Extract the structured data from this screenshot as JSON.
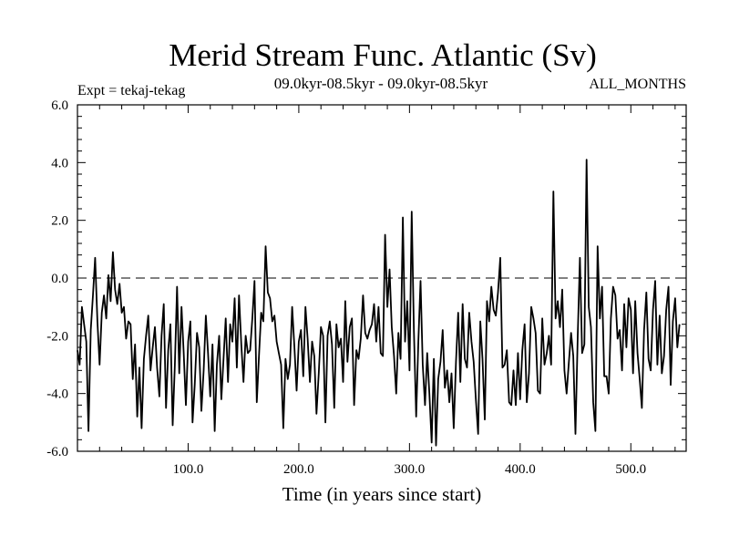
{
  "chart_data": {
    "type": "line",
    "title": "Merid Stream Func. Atlantic (Sv)",
    "subtitle": "09.0kyr-08.5kyr - 09.0kyr-08.5kyr",
    "left_note": "Expt = tekaj-tekag",
    "right_note": "ALL_MONTHS",
    "xlabel": "Time (in years since start)",
    "ylabel": "",
    "xlim": [
      0,
      550
    ],
    "ylim": [
      -6,
      6
    ],
    "x_ticks": [
      100,
      200,
      300,
      400,
      500
    ],
    "x_tick_labels": [
      "100.0",
      "200.0",
      "300.0",
      "400.0",
      "500.0"
    ],
    "y_ticks": [
      -6,
      -4,
      -2,
      0,
      2,
      4,
      6
    ],
    "y_tick_labels": [
      "-6.0",
      "-4.0",
      "-2.0",
      "0.0",
      "2.0",
      "4.0",
      "6.0"
    ],
    "reference_line": 0,
    "series": [
      {
        "name": "Merid Stream Func. Atlantic",
        "x_start": 0,
        "x_step": 2,
        "values": [
          -2.5,
          -3.0,
          -1.0,
          -1.6,
          -2.2,
          -5.3,
          -1.8,
          -0.6,
          0.7,
          -1.5,
          -3.0,
          -1.2,
          -0.6,
          -1.4,
          0.1,
          -0.8,
          0.9,
          -0.4,
          -0.9,
          -0.2,
          -1.2,
          -1.0,
          -2.1,
          -1.5,
          -1.6,
          -3.5,
          -2.3,
          -4.8,
          -3.1,
          -5.2,
          -2.8,
          -2.0,
          -1.3,
          -3.2,
          -2.4,
          -1.7,
          -3.1,
          -4.1,
          -2.0,
          -0.9,
          -4.5,
          -2.5,
          -1.6,
          -5.1,
          -3.0,
          -0.3,
          -3.3,
          -1.0,
          -2.6,
          -4.4,
          -2.2,
          -1.5,
          -5.0,
          -3.7,
          -1.9,
          -2.4,
          -4.6,
          -3.2,
          -1.3,
          -2.6,
          -4.1,
          -2.3,
          -5.3,
          -3.0,
          -2.0,
          -4.2,
          -2.8,
          -1.4,
          -3.6,
          -1.6,
          -2.2,
          -0.7,
          -3.1,
          -0.6,
          -2.3,
          -3.6,
          -2.0,
          -2.6,
          -2.5,
          -1.4,
          -0.1,
          -4.3,
          -2.7,
          -1.2,
          -1.5,
          1.1,
          -0.5,
          -0.7,
          -1.5,
          -1.3,
          -2.2,
          -2.6,
          -3.0,
          -5.2,
          -2.8,
          -3.5,
          -3.0,
          -1.0,
          -2.4,
          -3.9,
          -2.2,
          -1.8,
          -3.4,
          -1.0,
          -2.1,
          -3.6,
          -2.2,
          -2.7,
          -4.7,
          -3.3,
          -1.7,
          -2.0,
          -5.0,
          -2.0,
          -1.5,
          -2.3,
          -4.5,
          -1.6,
          -2.4,
          -2.1,
          -3.6,
          -0.8,
          -2.9,
          -1.7,
          -1.4,
          -4.4,
          -2.5,
          -2.8,
          -2.1,
          -0.6,
          -1.9,
          -2.1,
          -1.8,
          -1.6,
          -0.9,
          -2.2,
          -1.0,
          -2.6,
          -2.7,
          1.5,
          -1.0,
          0.3,
          -1.7,
          -2.7,
          -4.0,
          -1.9,
          -2.8,
          2.1,
          -2.2,
          -0.8,
          -3.2,
          2.3,
          -1.8,
          -4.8,
          -2.2,
          -0.1,
          -3.0,
          -4.4,
          -2.6,
          -4.0,
          -5.7,
          -2.8,
          -5.8,
          -3.5,
          -2.9,
          -1.8,
          -3.8,
          -3.2,
          -4.3,
          -3.3,
          -5.2,
          -2.9,
          -1.2,
          -3.6,
          -0.9,
          -2.8,
          -3.1,
          -1.2,
          -2.2,
          -2.9,
          -4.2,
          -5.4,
          -1.5,
          -2.8,
          -4.9,
          -0.8,
          -1.5,
          -0.3,
          -1.1,
          -1.3,
          -0.5,
          0.7,
          -3.1,
          -3.0,
          -2.5,
          -4.3,
          -4.4,
          -3.2,
          -4.4,
          -2.6,
          -4.2,
          -2.5,
          -1.6,
          -4.3,
          -3.3,
          -1.0,
          -1.4,
          -1.9,
          -3.9,
          -4.0,
          -1.4,
          -3.0,
          -2.6,
          -2.0,
          -3.0,
          3.0,
          -1.4,
          -0.8,
          -1.7,
          -0.4,
          -3.2,
          -4.0,
          -2.9,
          -1.9,
          -2.7,
          -5.4,
          -2.0,
          0.7,
          -2.6,
          -2.3,
          4.1,
          -1.0,
          -1.7,
          -4.3,
          -5.3,
          1.1,
          -1.4,
          -0.3,
          -3.4,
          -3.4,
          -4.0,
          -1.4,
          -0.3,
          -0.6,
          -2.1,
          -1.8,
          -3.2,
          -0.9,
          -2.4,
          -0.7,
          -1.1,
          -3.3,
          -0.8,
          -2.6,
          -3.5,
          -4.5,
          -1.8,
          -0.5,
          -2.8,
          -3.2,
          -1.1,
          -0.1,
          -3.0,
          -1.3,
          -3.3,
          -2.7,
          -1.1,
          -0.3,
          -3.7,
          -1.5,
          -0.7,
          -2.4,
          -1.6
        ]
      }
    ]
  }
}
